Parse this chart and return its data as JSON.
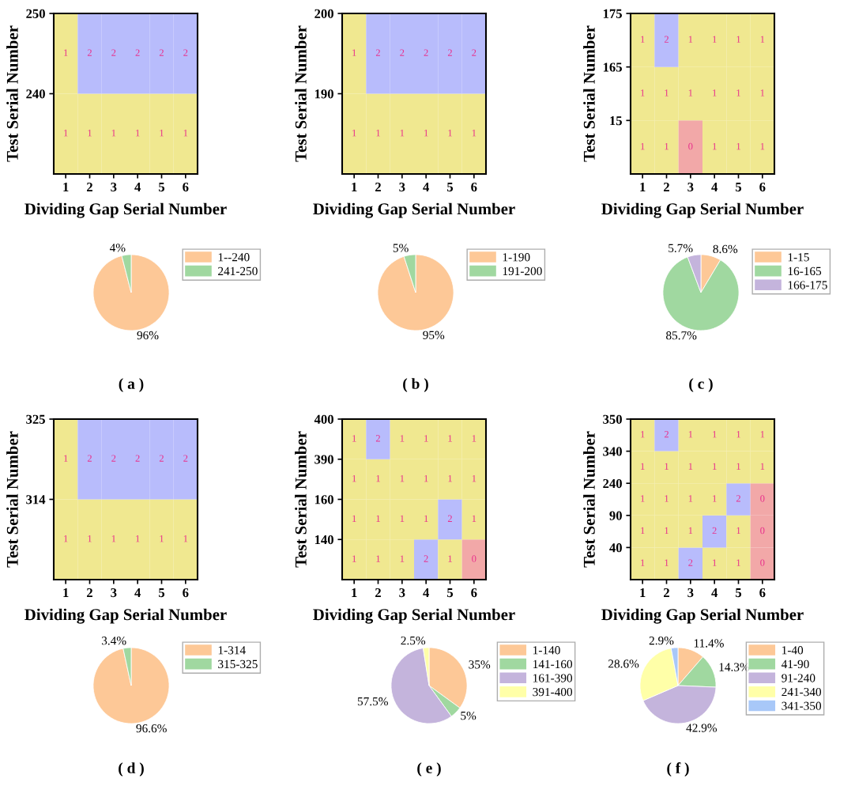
{
  "chart_data": [
    {
      "type": "heatmap",
      "xlabel": "Dividing Gap Serial Number",
      "ylabel": "Test Serial Number",
      "categories": [
        "1",
        "2",
        "3",
        "4",
        "5",
        "6"
      ],
      "y_categories": [
        "250",
        "240"
      ],
      "colors": [
        "#f2a8a8",
        "#f0e890",
        "#b8bcfc"
      ],
      "data_labels": true,
      "cells": [
        [
          1,
          2,
          2,
          2,
          2,
          2
        ],
        [
          1,
          1,
          1,
          1,
          1,
          1
        ]
      ]
    },
    {
      "type": "heatmap",
      "xlabel": "Dividing Gap Serial Number",
      "ylabel": "Test Serial Number",
      "categories": [
        "1",
        "2",
        "3",
        "4",
        "5",
        "6"
      ],
      "y_categories": [
        "200",
        "190"
      ],
      "colors": [
        "#f2a8a8",
        "#f0e890",
        "#b8bcfc"
      ],
      "data_labels": true,
      "cells": [
        [
          1,
          2,
          2,
          2,
          2,
          2
        ],
        [
          1,
          1,
          1,
          1,
          1,
          1
        ]
      ]
    },
    {
      "type": "heatmap",
      "xlabel": "Dividing Gap Serial Number",
      "ylabel": "Test Serial Number",
      "categories": [
        "1",
        "2",
        "3",
        "4",
        "5",
        "6"
      ],
      "y_categories": [
        "175",
        "165",
        "15"
      ],
      "colors": [
        "#f2a8a8",
        "#f0e890",
        "#b8bcfc"
      ],
      "data_labels": true,
      "cells": [
        [
          1,
          2,
          1,
          1,
          1,
          1
        ],
        [
          1,
          1,
          1,
          1,
          1,
          1
        ],
        [
          1,
          1,
          0,
          1,
          1,
          1
        ]
      ]
    },
    {
      "type": "pie",
      "categories": [
        "1--240",
        "241-250"
      ],
      "values": [
        96,
        4
      ],
      "value_labels": [
        "96%",
        "4%"
      ],
      "colors": [
        "#fdc897",
        "#a0d8a0"
      ],
      "legend": "right",
      "annotations": [
        "( a )"
      ]
    },
    {
      "type": "pie",
      "categories": [
        "1-190",
        "191-200"
      ],
      "values": [
        95,
        5
      ],
      "value_labels": [
        "95%",
        "5%"
      ],
      "colors": [
        "#fdc897",
        "#a0d8a0"
      ],
      "legend": "right",
      "annotations": [
        "( b )"
      ]
    },
    {
      "type": "pie",
      "categories": [
        "1-15",
        "16-165",
        "166-175"
      ],
      "values": [
        8.6,
        85.7,
        5.7
      ],
      "value_labels": [
        "8.6%",
        "85.7%",
        "5.7%"
      ],
      "colors": [
        "#fdc897",
        "#a0d8a0",
        "#c4b4dc"
      ],
      "legend": "right",
      "annotations": [
        "( c )"
      ]
    },
    {
      "type": "heatmap",
      "xlabel": "Dividing Gap Serial Number",
      "ylabel": "Test Serial Number",
      "categories": [
        "1",
        "2",
        "3",
        "4",
        "5",
        "6"
      ],
      "y_categories": [
        "325",
        "314"
      ],
      "colors": [
        "#f2a8a8",
        "#f0e890",
        "#b8bcfc"
      ],
      "data_labels": true,
      "cells": [
        [
          1,
          2,
          2,
          2,
          2,
          2
        ],
        [
          1,
          1,
          1,
          1,
          1,
          1
        ]
      ]
    },
    {
      "type": "heatmap",
      "xlabel": "Dividing Gap Serial Number",
      "ylabel": "Test Serial Number",
      "categories": [
        "1",
        "2",
        "3",
        "4",
        "5",
        "6"
      ],
      "y_categories": [
        "400",
        "390",
        "160",
        "140"
      ],
      "colors": [
        "#f2a8a8",
        "#f0e890",
        "#b8bcfc"
      ],
      "data_labels": true,
      "cells": [
        [
          1,
          2,
          1,
          1,
          1,
          1
        ],
        [
          1,
          1,
          1,
          1,
          1,
          1
        ],
        [
          1,
          1,
          1,
          1,
          2,
          1
        ],
        [
          1,
          1,
          1,
          2,
          1,
          0
        ]
      ]
    },
    {
      "type": "heatmap",
      "xlabel": "Dividing Gap Serial Number",
      "ylabel": "Test Serial Number",
      "categories": [
        "1",
        "2",
        "3",
        "4",
        "5",
        "6"
      ],
      "y_categories": [
        "350",
        "340",
        "240",
        "90",
        "40"
      ],
      "colors": [
        "#f2a8a8",
        "#f0e890",
        "#b8bcfc"
      ],
      "data_labels": true,
      "cells": [
        [
          1,
          2,
          1,
          1,
          1,
          1
        ],
        [
          1,
          1,
          1,
          1,
          1,
          1
        ],
        [
          1,
          1,
          1,
          1,
          2,
          0
        ],
        [
          1,
          1,
          1,
          2,
          1,
          0
        ],
        [
          1,
          1,
          2,
          1,
          1,
          0
        ]
      ]
    },
    {
      "type": "pie",
      "categories": [
        "1-314",
        "315-325"
      ],
      "values": [
        96.6,
        3.4
      ],
      "value_labels": [
        "96.6%",
        "3.4%"
      ],
      "colors": [
        "#fdc897",
        "#a0d8a0"
      ],
      "legend": "right",
      "annotations": [
        "( d )"
      ]
    },
    {
      "type": "pie",
      "categories": [
        "1-140",
        "141-160",
        "161-390",
        "391-400"
      ],
      "values": [
        35,
        5,
        57.5,
        2.5
      ],
      "value_labels": [
        "35%",
        "5%",
        "57.5%",
        "2.5%"
      ],
      "colors": [
        "#fdc897",
        "#a0d8a0",
        "#c4b4dc",
        "#ffffa8"
      ],
      "legend": "right",
      "annotations": [
        "( e )"
      ]
    },
    {
      "type": "pie",
      "categories": [
        "1-40",
        "41-90",
        "91-240",
        "241-340",
        "341-350"
      ],
      "values": [
        11.4,
        14.3,
        42.9,
        28.6,
        2.9
      ],
      "value_labels": [
        "11.4%",
        "14.3%",
        "42.9%",
        "28.6%",
        "2.9%"
      ],
      "colors": [
        "#fdc897",
        "#a0d8a0",
        "#c4b4dc",
        "#ffffa8",
        "#a8c8f8"
      ],
      "legend": "right",
      "annotations": [
        "( f )"
      ]
    }
  ]
}
